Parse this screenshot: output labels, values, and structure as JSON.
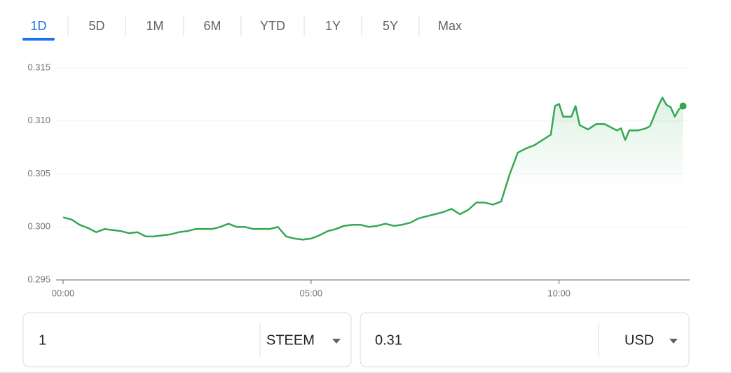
{
  "tabs": [
    "1D",
    "5D",
    "1M",
    "6M",
    "YTD",
    "1Y",
    "5Y",
    "Max"
  ],
  "active_tab": 0,
  "chart_data": {
    "type": "line",
    "color": "#34a853",
    "grid": true,
    "x": [
      "00:00",
      "00:10",
      "00:20",
      "00:30",
      "00:40",
      "00:50",
      "01:00",
      "01:10",
      "01:20",
      "01:30",
      "01:40",
      "01:50",
      "02:00",
      "02:10",
      "02:20",
      "02:30",
      "02:40",
      "02:50",
      "03:00",
      "03:10",
      "03:20",
      "03:30",
      "03:40",
      "03:50",
      "04:00",
      "04:10",
      "04:20",
      "04:30",
      "04:40",
      "04:50",
      "05:00",
      "05:10",
      "05:20",
      "05:30",
      "05:40",
      "05:50",
      "06:00",
      "06:10",
      "06:20",
      "06:30",
      "06:40",
      "06:50",
      "07:00",
      "07:10",
      "07:20",
      "07:30",
      "07:40",
      "07:50",
      "08:00",
      "08:10",
      "08:20",
      "08:30",
      "08:40",
      "08:50",
      "09:00",
      "09:10",
      "09:20",
      "09:30",
      "09:40",
      "09:50",
      "09:55",
      "10:00",
      "10:05",
      "10:15",
      "10:20",
      "10:25",
      "10:35",
      "10:45",
      "10:55",
      "11:00",
      "11:10",
      "11:15",
      "11:20",
      "11:25",
      "11:35",
      "11:45",
      "11:50",
      "12:00",
      "12:05",
      "12:10",
      "12:15",
      "12:20",
      "12:25",
      "12:30"
    ],
    "values": [
      0.3009,
      0.3007,
      0.3002,
      0.2999,
      0.2995,
      0.2998,
      0.2997,
      0.2996,
      0.2994,
      0.2995,
      0.2991,
      0.2991,
      0.2992,
      0.2993,
      0.2995,
      0.2996,
      0.2998,
      0.2998,
      0.2998,
      0.3,
      0.3003,
      0.3,
      0.3,
      0.2998,
      0.2998,
      0.2998,
      0.3,
      0.2991,
      0.2989,
      0.2988,
      0.2989,
      0.2992,
      0.2996,
      0.2998,
      0.3001,
      0.3002,
      0.3002,
      0.3,
      0.3001,
      0.3003,
      0.3001,
      0.3002,
      0.3004,
      0.3008,
      0.301,
      0.3012,
      0.3014,
      0.3017,
      0.3012,
      0.3016,
      0.3023,
      0.3023,
      0.3021,
      0.3024,
      0.3049,
      0.307,
      0.3074,
      0.3077,
      0.3082,
      0.3087,
      0.3114,
      0.3116,
      0.3104,
      0.3104,
      0.3114,
      0.3096,
      0.3092,
      0.3097,
      0.3097,
      0.3095,
      0.3091,
      0.3093,
      0.3082,
      0.3091,
      0.3091,
      0.3093,
      0.3095,
      0.3114,
      0.3122,
      0.3115,
      0.3113,
      0.3104,
      0.3111,
      0.3114
    ],
    "xlim": [
      "00:00",
      "12:38"
    ],
    "xticks": [
      "00:00",
      "05:00",
      "10:00"
    ],
    "ylim": [
      0.295,
      0.315
    ],
    "yticks": [
      0.295,
      {
        "value": 0.3,
        "label": "0.300"
      },
      0.305,
      {
        "value": 0.31,
        "label": "0.310"
      },
      0.315
    ]
  },
  "converter": {
    "amount": "1",
    "from_currency": "STEEM",
    "converted": "0.31",
    "to_currency": "USD"
  }
}
